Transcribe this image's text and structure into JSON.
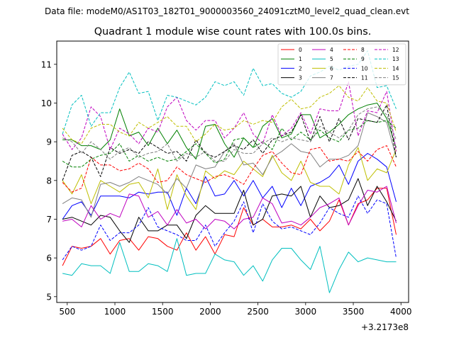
{
  "header": {
    "data_file": "Data file: modeM0/AS1T03_182T01_9000003560_24091cztM0_level2_quad_clean.evt"
  },
  "chart_data": {
    "type": "line",
    "title": "Quadrant 1 module wise count rates with 100.0s bins.",
    "xlabel": "",
    "ylabel": "",
    "x_offset_label": "+3.2173e8",
    "xlim": [
      390,
      4080
    ],
    "ylim": [
      4.85,
      11.6
    ],
    "xticks": [
      500,
      1000,
      1500,
      2000,
      2500,
      3000,
      3500,
      4000
    ],
    "yticks": [
      5,
      6,
      7,
      8,
      9,
      10,
      11
    ],
    "x": [
      450,
      550,
      650,
      750,
      850,
      950,
      1050,
      1150,
      1250,
      1350,
      1450,
      1550,
      1650,
      1750,
      1850,
      1950,
      2050,
      2150,
      2250,
      2350,
      2450,
      2550,
      2650,
      2750,
      2850,
      2950,
      3050,
      3150,
      3250,
      3350,
      3450,
      3550,
      3650,
      3750,
      3850,
      3950
    ],
    "legend_position": "top-right",
    "series": [
      {
        "name": "0",
        "color": "#ff0000",
        "dash": "solid",
        "values": [
          5.8,
          6.3,
          6.25,
          6.3,
          6.5,
          6.1,
          6.45,
          6.5,
          6.2,
          6.55,
          6.5,
          6.3,
          6.2,
          6.65,
          6.2,
          6.55,
          6.1,
          6.6,
          6.55,
          7.3,
          6.85,
          7.0,
          6.8,
          6.8,
          6.85,
          6.75,
          7.0,
          6.7,
          6.95,
          7.5,
          6.85,
          7.4,
          7.5,
          7.8,
          7.8,
          6.6
        ]
      },
      {
        "name": "1",
        "color": "#008000",
        "dash": "solid",
        "values": [
          9.05,
          9.05,
          8.9,
          8.9,
          8.8,
          9.05,
          9.85,
          9.15,
          9.25,
          8.9,
          9.35,
          8.95,
          9.3,
          8.85,
          8.55,
          9.4,
          9.45,
          8.95,
          8.6,
          9.1,
          8.85,
          9.4,
          9.6,
          9.1,
          9.2,
          9.7,
          9.7,
          9.1,
          9.25,
          9.45,
          9.7,
          9.85,
          9.95,
          10.0,
          9.6,
          8.85
        ]
      },
      {
        "name": "2",
        "color": "#0000ff",
        "dash": "solid",
        "values": [
          7.0,
          7.35,
          7.45,
          7.1,
          7.6,
          7.6,
          7.6,
          7.55,
          7.7,
          7.65,
          7.7,
          7.7,
          7.1,
          7.8,
          7.4,
          8.1,
          7.6,
          7.65,
          8.0,
          7.6,
          8.0,
          7.55,
          7.85,
          7.3,
          7.8,
          7.35,
          7.85,
          7.95,
          8.1,
          8.4,
          7.9,
          8.5,
          8.7,
          8.55,
          8.35,
          7.45
        ]
      },
      {
        "name": "3",
        "color": "#000000",
        "dash": "solid",
        "values": [
          7.0,
          7.05,
          6.95,
          6.85,
          7.1,
          7.05,
          6.7,
          6.4,
          7.05,
          6.7,
          6.7,
          6.85,
          6.85,
          6.5,
          7.1,
          7.35,
          7.15,
          7.15,
          7.15,
          7.75,
          6.85,
          7.0,
          7.6,
          7.65,
          7.6,
          7.85,
          7.05,
          7.6,
          7.3,
          7.35,
          7.5,
          8.05,
          7.35,
          7.85,
          7.45,
          6.95
        ]
      },
      {
        "name": "4",
        "color": "#bf00bf",
        "dash": "solid",
        "values": [
          6.95,
          7.0,
          6.8,
          7.35,
          7.0,
          7.15,
          7.05,
          7.65,
          7.6,
          7.05,
          7.2,
          6.85,
          7.25,
          6.9,
          7.0,
          6.75,
          7.0,
          6.95,
          6.75,
          7.0,
          7.05,
          7.55,
          7.4,
          6.9,
          6.95,
          6.85,
          7.05,
          7.3,
          7.4,
          7.55,
          6.85,
          7.35,
          7.75,
          7.7,
          7.85,
          6.9
        ]
      },
      {
        "name": "5",
        "color": "#00bfbf",
        "dash": "solid",
        "values": [
          5.6,
          5.55,
          5.85,
          5.8,
          5.8,
          5.6,
          6.4,
          5.65,
          5.65,
          5.85,
          5.8,
          5.65,
          6.5,
          5.55,
          5.6,
          5.6,
          6.1,
          5.95,
          5.9,
          5.55,
          5.8,
          5.4,
          5.95,
          6.25,
          6.25,
          5.95,
          5.7,
          6.3,
          5.1,
          5.7,
          6.15,
          5.9,
          6.0,
          5.95,
          5.9,
          5.9
        ]
      },
      {
        "name": "6",
        "color": "#bfbf00",
        "dash": "solid",
        "values": [
          8.0,
          7.65,
          8.15,
          7.4,
          8.0,
          7.85,
          7.7,
          7.9,
          7.95,
          7.55,
          8.3,
          7.25,
          8.15,
          7.6,
          7.25,
          8.25,
          8.05,
          8.25,
          8.15,
          8.5,
          8.3,
          8.1,
          8.65,
          8.2,
          8.0,
          8.5,
          7.95,
          7.85,
          7.85,
          7.65,
          8.4,
          8.85,
          8.0,
          8.3,
          8.2,
          8.8
        ]
      },
      {
        "name": "7",
        "color": "#808080",
        "dash": "solid",
        "values": [
          7.4,
          7.55,
          7.5,
          7.05,
          7.9,
          7.95,
          7.85,
          7.95,
          8.1,
          8.0,
          7.9,
          7.65,
          8.05,
          7.8,
          8.4,
          8.3,
          8.35,
          8.75,
          8.95,
          8.4,
          8.45,
          8.15,
          8.6,
          8.75,
          8.95,
          8.75,
          8.7,
          8.35,
          8.55,
          8.55,
          8.65,
          8.9,
          9.75,
          9.65,
          9.5,
          8.6
        ]
      },
      {
        "name": "8",
        "color": "#ff0000",
        "dash": "dashed",
        "values": [
          7.95,
          7.7,
          7.8,
          8.6,
          8.4,
          8.4,
          8.25,
          8.3,
          8.45,
          8.3,
          7.95,
          8.0,
          8.35,
          8.15,
          8.05,
          7.95,
          8.1,
          8.15,
          8.05,
          7.9,
          8.3,
          8.65,
          8.75,
          8.45,
          8.2,
          8.15,
          8.8,
          8.85,
          8.5,
          8.55,
          8.5,
          8.75,
          8.5,
          8.8,
          8.9,
          8.35
        ]
      },
      {
        "name": "9",
        "color": "#008000",
        "dash": "dashed",
        "values": [
          8.5,
          8.35,
          8.35,
          8.55,
          8.65,
          8.7,
          8.95,
          8.5,
          8.65,
          8.5,
          8.6,
          8.5,
          8.55,
          8.75,
          8.95,
          8.7,
          8.45,
          8.55,
          9.05,
          9.1,
          8.85,
          9.0,
          8.8,
          9.35,
          9.05,
          9.25,
          9.05,
          9.3,
          9.1,
          9.0,
          9.3,
          9.35,
          9.55,
          9.5,
          9.55,
          9.35
        ]
      },
      {
        "name": "10",
        "color": "#0000ff",
        "dash": "dashed",
        "values": [
          5.95,
          6.3,
          6.2,
          6.3,
          6.85,
          6.45,
          6.65,
          6.65,
          6.85,
          7.3,
          6.8,
          6.7,
          6.6,
          6.45,
          6.45,
          6.85,
          6.3,
          6.65,
          6.95,
          7.45,
          6.65,
          7.4,
          6.95,
          6.75,
          6.8,
          6.7,
          6.6,
          6.9,
          7.3,
          7.15,
          7.05,
          7.6,
          7.15,
          7.5,
          7.4,
          6.0
        ]
      },
      {
        "name": "11",
        "color": "#000000",
        "dash": "dashed",
        "values": [
          8.0,
          8.65,
          8.75,
          8.6,
          8.1,
          8.85,
          8.7,
          8.8,
          8.7,
          9.0,
          8.85,
          8.7,
          8.75,
          8.5,
          9.05,
          8.7,
          8.6,
          8.75,
          8.9,
          8.8,
          9.05,
          8.7,
          9.05,
          9.15,
          9.25,
          9.7,
          9.0,
          9.65,
          9.0,
          9.6,
          9.05,
          9.6,
          9.55,
          9.5,
          9.95,
          8.6
        ]
      },
      {
        "name": "12",
        "color": "#bf00bf",
        "dash": "dashed",
        "values": [
          9.2,
          8.8,
          9.1,
          9.9,
          9.65,
          8.8,
          9.35,
          9.2,
          8.95,
          9.35,
          9.25,
          9.9,
          10.15,
          9.55,
          9.3,
          9.55,
          9.55,
          9.1,
          9.35,
          9.75,
          9.2,
          8.95,
          9.7,
          9.15,
          9.35,
          9.75,
          9.2,
          9.85,
          9.8,
          9.8,
          10.55,
          9.15,
          9.8,
          9.75,
          10.3,
          8.75
        ]
      },
      {
        "name": "13",
        "color": "#00bfbf",
        "dash": "dashed",
        "values": [
          9.2,
          9.95,
          10.2,
          9.4,
          9.75,
          9.75,
          10.4,
          10.8,
          10.25,
          10.3,
          9.55,
          10.2,
          10.15,
          10.05,
          9.95,
          10.15,
          10.55,
          10.45,
          10.55,
          10.2,
          10.9,
          10.45,
          10.5,
          10.25,
          10.15,
          10.3,
          10.7,
          10.8,
          10.95,
          10.85,
          10.95,
          11.0,
          11.35,
          10.4,
          10.45,
          9.85
        ]
      },
      {
        "name": "14",
        "color": "#bfbf00",
        "dash": "dashed",
        "values": [
          9.35,
          9.05,
          8.95,
          9.35,
          9.45,
          9.45,
          9.25,
          9.15,
          9.5,
          9.35,
          9.5,
          9.65,
          9.4,
          9.4,
          9.0,
          9.2,
          9.45,
          9.3,
          9.35,
          9.55,
          9.45,
          9.55,
          9.5,
          9.9,
          10.1,
          9.85,
          9.9,
          10.15,
          10.25,
          10.45,
          10.15,
          10.05,
          10.4,
          10.05,
          10.0,
          9.25
        ]
      },
      {
        "name": "15",
        "color": "#808080",
        "dash": "dashed",
        "values": [
          9.1,
          9.0,
          8.7,
          9.0,
          8.8,
          8.55,
          8.75,
          8.85,
          8.6,
          8.7,
          8.75,
          8.95,
          8.5,
          8.7,
          8.6,
          8.75,
          8.5,
          8.5,
          8.8,
          8.7,
          8.7,
          8.95,
          9.1,
          9.0,
          9.1,
          9.05,
          9.0,
          9.4,
          9.25,
          9.1,
          9.3,
          9.7,
          9.85,
          9.9,
          9.7,
          9.05
        ]
      }
    ]
  }
}
